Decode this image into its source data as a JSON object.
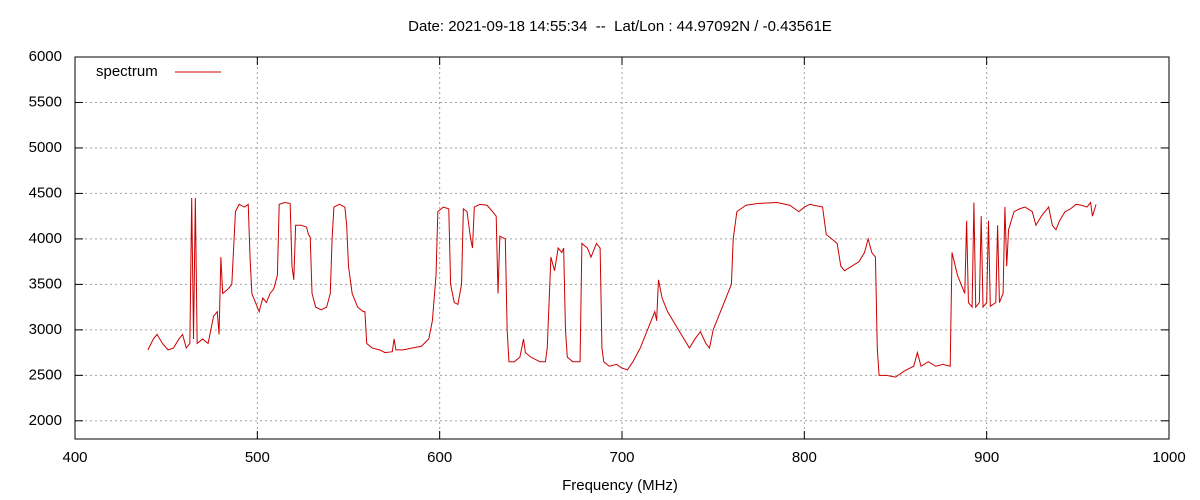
{
  "chart_data": {
    "type": "line",
    "title": "Date: 2021-09-18 14:55:34  --  Lat/Lon : 44.97092N / -0.43561E",
    "x_label": "Frequency (MHz)",
    "xlim": [
      400,
      1000
    ],
    "xticks": [
      400,
      500,
      600,
      700,
      800,
      900,
      1000
    ],
    "ylim": [
      1800,
      6000
    ],
    "yticks": [
      2000,
      2500,
      3000,
      3500,
      4000,
      4500,
      5000,
      5500,
      6000
    ],
    "grid": true,
    "legend": "top-left",
    "x": [
      440,
      443,
      445,
      448,
      451,
      454,
      457,
      459,
      461,
      463,
      464,
      465,
      466,
      467,
      470,
      473,
      476,
      478,
      479,
      480,
      481,
      484,
      486,
      488,
      490,
      493,
      495,
      496,
      497,
      499,
      501,
      503,
      505,
      507,
      509,
      511,
      512,
      515,
      518,
      519,
      520,
      521,
      524,
      527,
      528,
      529,
      530,
      532,
      535,
      538,
      540,
      541,
      542,
      545,
      548,
      549,
      550,
      552,
      555,
      558,
      559,
      560,
      563,
      567,
      570,
      574,
      575,
      576,
      580,
      585,
      590,
      594,
      596,
      598,
      599,
      602,
      605,
      606,
      608,
      610,
      612,
      613,
      615,
      617,
      618,
      619,
      622,
      626,
      629,
      631,
      632,
      633,
      636,
      637,
      638,
      641,
      644,
      646,
      647,
      650,
      655,
      658,
      659,
      661,
      663,
      665,
      667,
      668,
      669,
      670,
      673,
      677,
      678,
      681,
      683,
      686,
      688,
      689,
      690,
      693,
      697,
      700,
      703,
      706,
      710,
      714,
      718,
      719,
      720,
      722,
      725,
      728,
      731,
      734,
      737,
      740,
      743,
      746,
      748,
      750,
      754,
      758,
      760,
      761,
      763,
      768,
      775,
      785,
      792,
      797,
      800,
      803,
      810,
      812,
      815,
      818,
      820,
      822,
      826,
      830,
      833,
      835,
      837,
      839,
      840,
      841,
      845,
      850,
      855,
      860,
      862,
      864,
      868,
      872,
      876,
      880,
      881,
      884,
      886,
      888,
      889,
      890,
      892,
      893,
      894,
      896,
      897,
      898,
      900,
      901,
      902,
      905,
      906,
      907,
      909,
      910,
      911,
      912,
      915,
      918,
      921,
      925,
      927,
      930,
      932,
      934,
      936,
      938,
      940,
      943,
      946,
      949,
      952,
      955,
      957,
      958,
      960
    ],
    "series": [
      {
        "name": "spectrum",
        "color": "#cc0000",
        "values": [
          2780,
          2900,
          2950,
          2850,
          2780,
          2800,
          2900,
          2950,
          2800,
          2850,
          4450,
          2900,
          4450,
          2850,
          2900,
          2850,
          3150,
          3200,
          2950,
          3800,
          3400,
          3450,
          3500,
          4300,
          4380,
          4350,
          4380,
          3800,
          3400,
          3300,
          3200,
          3350,
          3300,
          3400,
          3450,
          3600,
          4380,
          4400,
          4390,
          3700,
          3550,
          4150,
          4150,
          4130,
          4050,
          4020,
          3400,
          3250,
          3220,
          3250,
          3400,
          4000,
          4350,
          4380,
          4350,
          4150,
          3700,
          3400,
          3250,
          3200,
          3200,
          2850,
          2800,
          2780,
          2750,
          2760,
          2900,
          2780,
          2780,
          2800,
          2820,
          2900,
          3100,
          3600,
          4300,
          4350,
          4330,
          3500,
          3300,
          3280,
          3500,
          4330,
          4300,
          4000,
          3900,
          4350,
          4380,
          4370,
          4300,
          4250,
          3400,
          4030,
          4000,
          3000,
          2650,
          2650,
          2700,
          2900,
          2750,
          2700,
          2650,
          2650,
          2800,
          3800,
          3650,
          3900,
          3850,
          3900,
          3000,
          2700,
          2650,
          2650,
          3950,
          3900,
          3800,
          3950,
          3900,
          2800,
          2650,
          2600,
          2620,
          2580,
          2560,
          2650,
          2800,
          3000,
          3200,
          3100,
          3550,
          3350,
          3200,
          3100,
          3000,
          2900,
          2800,
          2900,
          2980,
          2850,
          2800,
          3000,
          3200,
          3400,
          3500,
          4000,
          4300,
          4370,
          4390,
          4400,
          4370,
          4300,
          4350,
          4380,
          4350,
          4050,
          4000,
          3950,
          3700,
          3650,
          3700,
          3750,
          3850,
          4000,
          3850,
          3800,
          2800,
          2500,
          2500,
          2480,
          2550,
          2600,
          2750,
          2600,
          2650,
          2600,
          2620,
          2600,
          3850,
          3600,
          3500,
          3400,
          4200,
          3300,
          3250,
          4400,
          3250,
          3300,
          4250,
          3250,
          3300,
          4200,
          3260,
          3300,
          4150,
          3300,
          3400,
          4350,
          3700,
          4100,
          4300,
          4330,
          4350,
          4300,
          4150,
          4250,
          4300,
          4350,
          4150,
          4100,
          4200,
          4300,
          4330,
          4380,
          4370,
          4350,
          4400,
          4250,
          4380
        ]
      }
    ]
  }
}
